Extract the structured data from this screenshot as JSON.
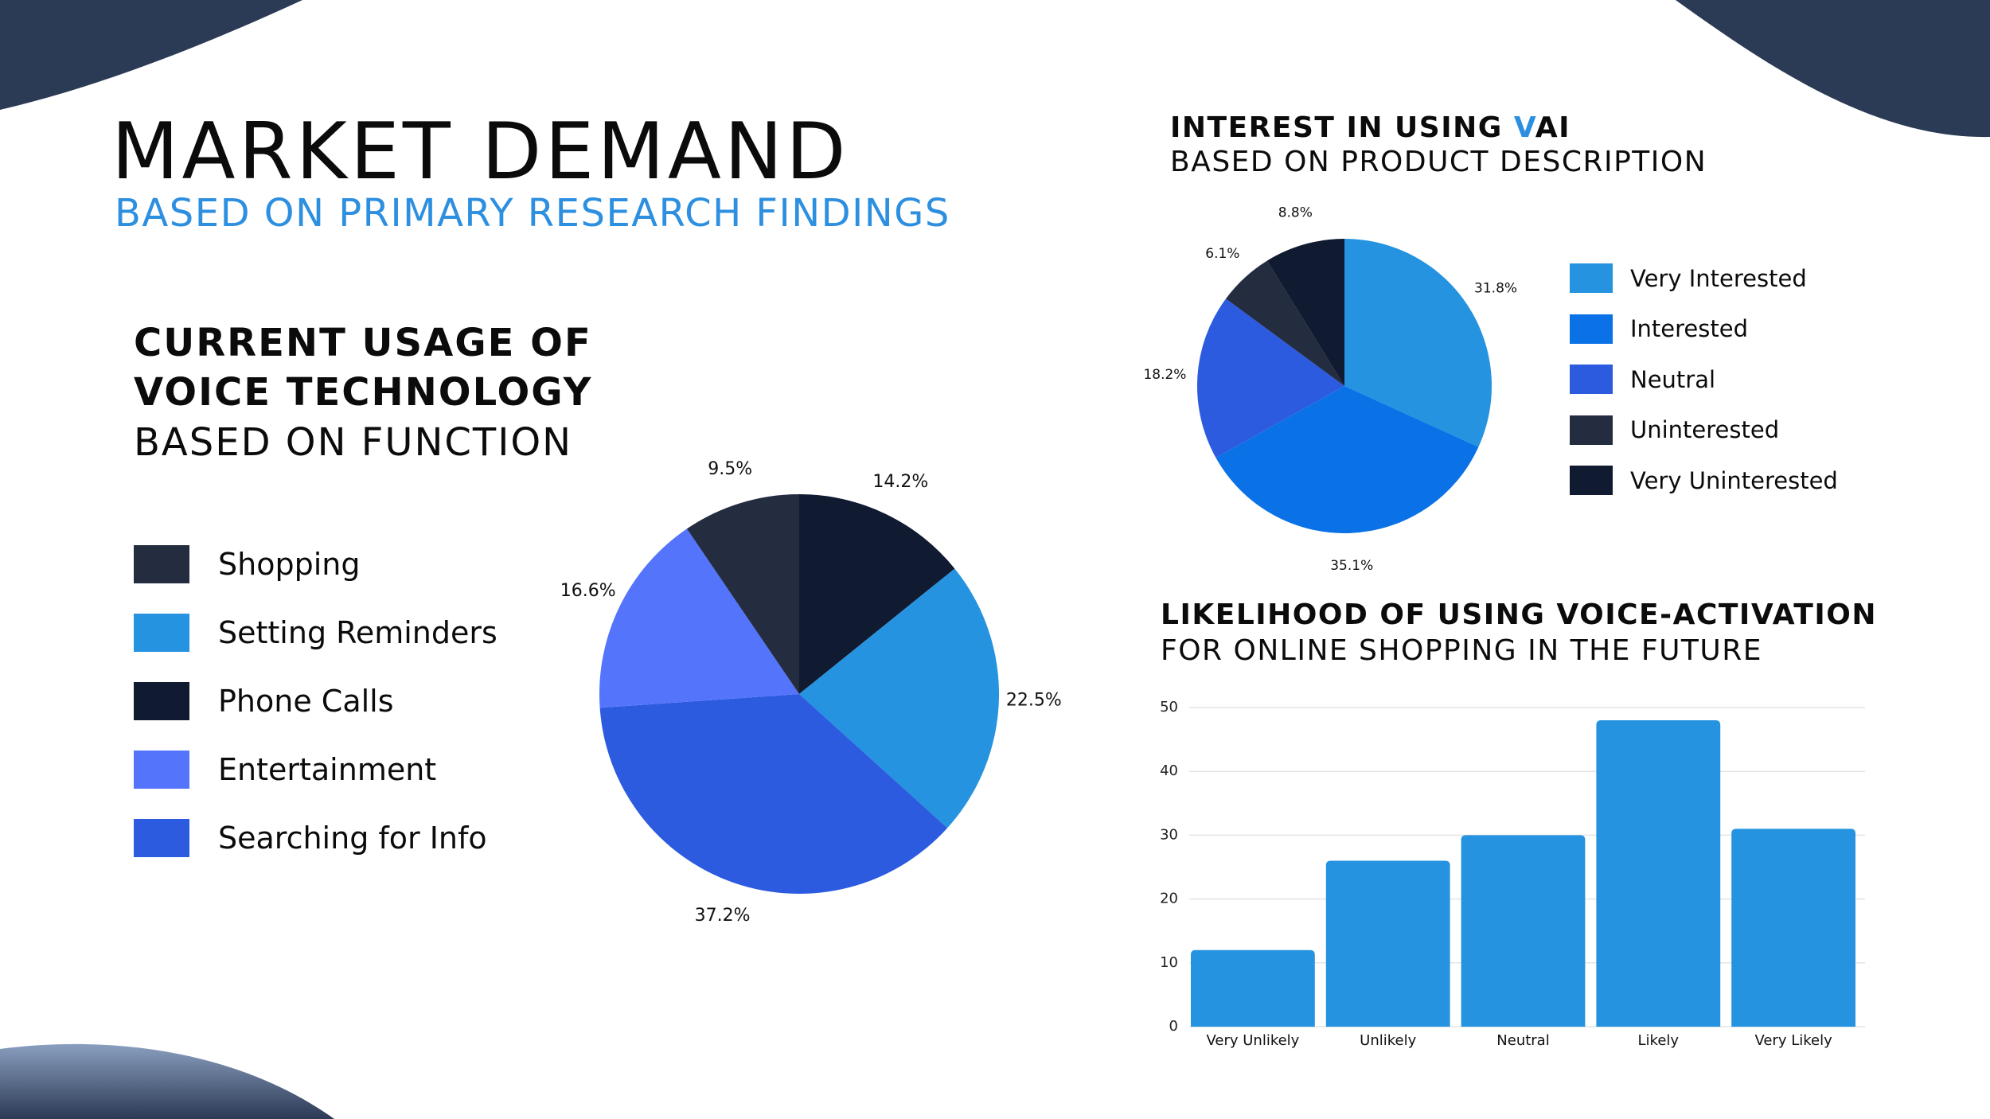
{
  "page": {
    "title": "MARKET DEMAND",
    "subtitle": "BASED ON PRIMARY RESEARCH FINDINGS"
  },
  "usage_section": {
    "heading_line1": "CURRENT USAGE OF",
    "heading_line2": "VOICE TECHNOLOGY",
    "heading_line3": "BASED ON FUNCTION"
  },
  "interest_section": {
    "heading_part1": "INTEREST IN USING ",
    "heading_accent": "V",
    "heading_part2": "AI",
    "heading_line2": "BASED ON PRODUCT DESCRIPTION"
  },
  "likelihood_section": {
    "heading_line1": "LIKELIHOOD OF USING VOICE-ACTIVATION",
    "heading_line2": "FOR ONLINE SHOPPING IN THE FUTURE"
  },
  "colors": {
    "accent": "#2d8fe0",
    "decor": "#2b3a55",
    "grid": "#e4e4e4"
  },
  "chart_data": [
    {
      "type": "pie",
      "name": "usage",
      "legend": [
        {
          "label": "Shopping",
          "color": "#242c40"
        },
        {
          "label": "Setting Reminders",
          "color": "#2593e0"
        },
        {
          "label": "Phone Calls",
          "color": "#101a30"
        },
        {
          "label": "Entertainment",
          "color": "#5475fb"
        },
        {
          "label": "Searching for Info",
          "color": "#2c5be0"
        }
      ],
      "slices": [
        {
          "label": "Phone Calls",
          "value": 14.2,
          "text": "14.2%",
          "color": "#101a30"
        },
        {
          "label": "Setting Reminders",
          "value": 22.5,
          "text": "22.5%",
          "color": "#2593e0"
        },
        {
          "label": "Searching for Info",
          "value": 37.2,
          "text": "37.2%",
          "color": "#2c5be0"
        },
        {
          "label": "Entertainment",
          "value": 16.6,
          "text": "16.6%",
          "color": "#5475fb"
        },
        {
          "label": "Shopping",
          "value": 9.5,
          "text": "9.5%",
          "color": "#242c40"
        }
      ]
    },
    {
      "type": "pie",
      "name": "interest",
      "legend": [
        {
          "label": "Very Interested",
          "color": "#2593e0"
        },
        {
          "label": "Interested",
          "color": "#0a72e6"
        },
        {
          "label": "Neutral",
          "color": "#2c5be0"
        },
        {
          "label": "Uninterested",
          "color": "#242c40"
        },
        {
          "label": "Very Uninterested",
          "color": "#101a30"
        }
      ],
      "slices": [
        {
          "label": "Very Interested",
          "value": 31.8,
          "text": "31.8%",
          "color": "#2593e0"
        },
        {
          "label": "Interested",
          "value": 35.1,
          "text": "35.1%",
          "color": "#0a72e6"
        },
        {
          "label": "Neutral",
          "value": 18.2,
          "text": "18.2%",
          "color": "#2c5be0"
        },
        {
          "label": "Uninterested",
          "value": 6.1,
          "text": "6.1%",
          "color": "#242c40"
        },
        {
          "label": "Very Uninterested",
          "value": 8.8,
          "text": "8.8%",
          "color": "#101a30"
        }
      ]
    },
    {
      "type": "bar",
      "name": "likelihood",
      "categories": [
        "Very Unlikely",
        "Unlikely",
        "Neutral",
        "Likely",
        "Very Likely"
      ],
      "values": [
        12,
        26,
        30,
        48,
        31
      ],
      "ylim": [
        0,
        50
      ],
      "yticks": [
        "0",
        "10",
        "20",
        "30",
        "40",
        "50"
      ],
      "color": "#2593e0",
      "grid": true
    }
  ]
}
